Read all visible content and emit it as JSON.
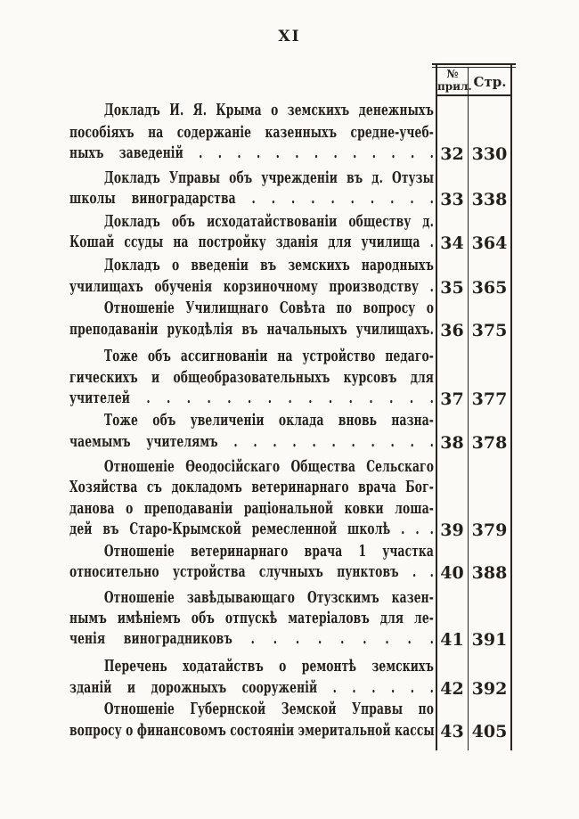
{
  "page": {
    "number": "XI"
  },
  "table": {
    "header": {
      "appendix_line1": "№",
      "appendix_line2": "прил.",
      "page": "Стр."
    }
  },
  "ink_color": "#241f19",
  "paper_color": "#fbfaf6",
  "entries": [
    {
      "appendix_no": "32",
      "page_no": "330",
      "lines": [
        "Докладъ И. Я. Крыма о земскихъ денежныхъ",
        "пособіяхъ на содержаніе казенныхъ средне-учеб-",
        "ныхъ заведеній . . . . . . . . . . . . ."
      ]
    },
    {
      "appendix_no": "33",
      "page_no": "338",
      "lines": [
        "Докладъ Управы объ учрежденіи въ д. Отузы",
        "школы виноградарства . . . . . . . . . ."
      ]
    },
    {
      "appendix_no": "34",
      "page_no": "364",
      "lines": [
        "Докладъ объ исходатайствованіи обществу д.",
        "Кошай ссуды на постройку зданія для училища ."
      ]
    },
    {
      "appendix_no": "35",
      "page_no": "365",
      "lines": [
        "Докладъ о введеніи въ земскихъ народныхъ",
        "училищахъ обученія корзиночному производству ."
      ]
    },
    {
      "appendix_no": "36",
      "page_no": "375",
      "lines": [
        "Отношеніе Училищнаго Совѣта по вопросу о",
        "преподаваніи рукодѣлія въ начальныхъ училищахъ."
      ]
    },
    {
      "appendix_no": "37",
      "page_no": "377",
      "lines": [
        "Тоже объ ассигнованіи на устройство педаго-",
        "гическихъ и общеобразовательныхъ курсовъ для",
        "учителей . . . . . . . . . . . . . . ."
      ]
    },
    {
      "appendix_no": "38",
      "page_no": "378",
      "lines": [
        "Тоже объ увеличеніи оклада вновь назна-",
        "чаемымъ учителямъ . . . . . . . . . . ."
      ]
    },
    {
      "appendix_no": "39",
      "page_no": "379",
      "lines": [
        "Отношеніе Ѳеодосійскаго Общества Сельскаго",
        "Хозяйства съ докладомъ ветеринарнаго врача Бог-",
        "данова о преподаваніи раціональной ковки лоша-",
        "дей въ Старо-Крымской ремесленной школѣ . . ."
      ]
    },
    {
      "appendix_no": "40",
      "page_no": "388",
      "lines": [
        "Отношеніе ветеринарнаго врача 1 участка",
        "относительно устройства случныхъ пунктовъ . ."
      ]
    },
    {
      "appendix_no": "41",
      "page_no": "391",
      "lines": [
        "Отношеніе завѣдывающаго Отузскимъ казен-",
        "нымъ имѣніемъ объ отпускѣ матеріаловъ для ле-",
        "ченія виноградниковъ . . . . . . . . ."
      ]
    },
    {
      "appendix_no": "42",
      "page_no": "392",
      "lines": [
        "Перечень ходатайствъ о ремонтѣ земскихъ",
        "зданій и дорожныхъ сооруженій . . . . . ."
      ]
    },
    {
      "appendix_no": "43",
      "page_no": "405",
      "lines": [
        "Отношеніе Губернской Земской Управы по",
        "вопросу о финансовомъ состояніи эмеритальной кассы"
      ]
    }
  ]
}
